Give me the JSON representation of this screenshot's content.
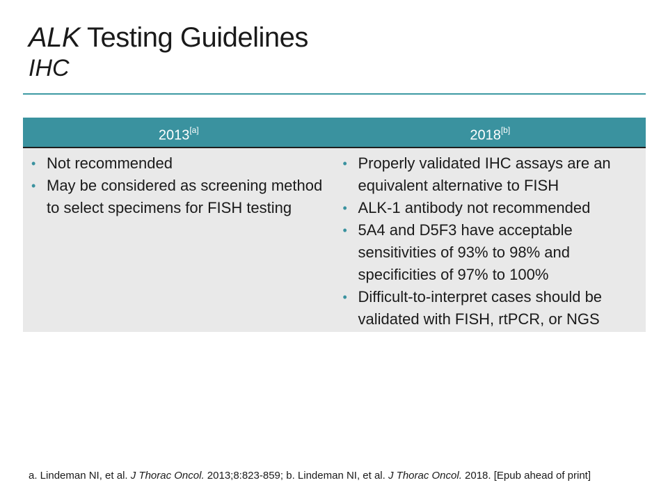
{
  "slide": {
    "title_italic": "ALK",
    "title_rest": " Testing Guidelines",
    "subtitle": "IHC"
  },
  "table": {
    "columns": [
      {
        "year": "2013",
        "ref": "[a]"
      },
      {
        "year": "2018",
        "ref": "[b]"
      }
    ],
    "col1_items": [
      "Not recommended",
      "May be considered as screening method to select specimens for FISH testing"
    ],
    "col2_items": [
      "Properly validated IHC assays are an equivalent alternative to FISH",
      "ALK-1 antibody not recommended",
      "5A4 and D5F3 have acceptable sensitivities of 93% to 98% and specificities of 97% to 100%",
      "Difficult-to-interpret cases should be validated with FISH, rtPCR, or NGS"
    ],
    "bullet_char": "•"
  },
  "footnote": {
    "a_text": "a. Lindeman NI, et al. ",
    "a_journal": "J Thorac Oncol.",
    "a_cite": " 2013;8:823-859; b. Lindeman NI, et al. ",
    "b_journal": "J Thorac Oncol.",
    "b_cite": " 2018. [Epub ahead of print]"
  },
  "colors": {
    "accent": "#3a929f",
    "rule": "#3d9aa3",
    "body_bg": "#e9e9e9"
  }
}
